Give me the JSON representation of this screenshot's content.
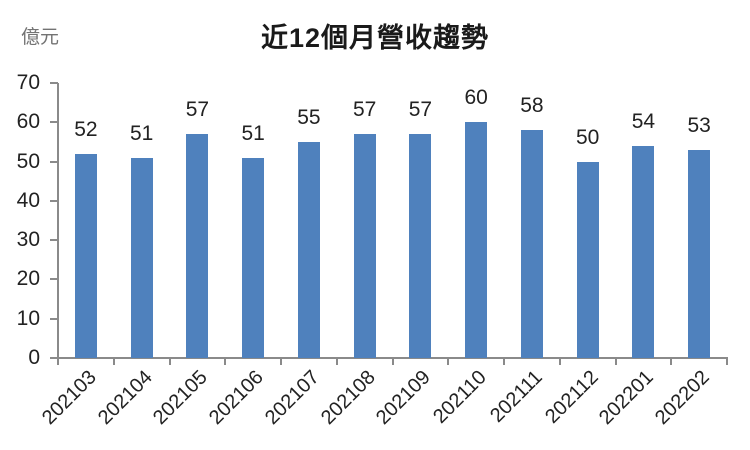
{
  "chart_data": {
    "type": "bar",
    "title": "近12個月營收趨勢",
    "unit_label": "億元",
    "xlabel": "",
    "ylabel": "億元",
    "categories": [
      "202103",
      "202104",
      "202105",
      "202106",
      "202107",
      "202108",
      "202109",
      "202110",
      "202111",
      "202112",
      "202201",
      "202202"
    ],
    "values": [
      52,
      51,
      57,
      51,
      55,
      57,
      57,
      60,
      58,
      50,
      54,
      53
    ],
    "ylim": [
      0,
      70
    ],
    "yticks": [
      0,
      10,
      20,
      30,
      40,
      50,
      60,
      70
    ],
    "grid": false,
    "legend": "none",
    "data_labels": "outside-end",
    "colors": {
      "bar": "#4F81BD",
      "axis": "#8A8A8A",
      "text": "#222222",
      "unit_text": "#737373",
      "title_text": "#1A1A1A",
      "background": "#FFFFFF"
    }
  }
}
